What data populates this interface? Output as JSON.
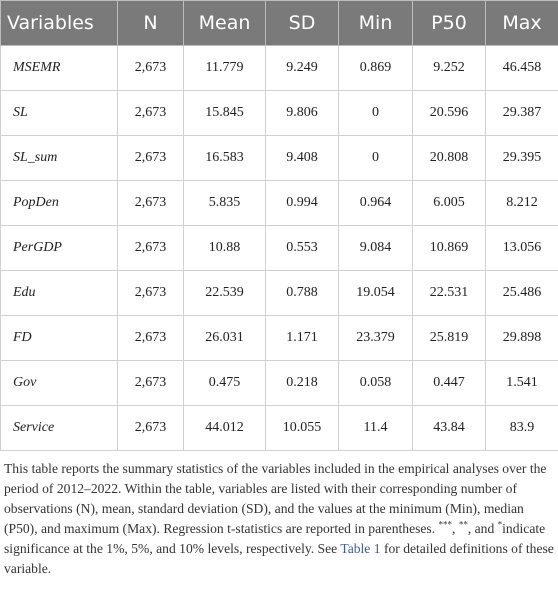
{
  "table": {
    "header": [
      "Variables",
      "N",
      "Mean",
      "SD",
      "Min",
      "P50",
      "Max"
    ],
    "rows": [
      [
        "MSEMR",
        "2,673",
        "11.779",
        "9.249",
        "0.869",
        "9.252",
        "46.458"
      ],
      [
        "SL",
        "2,673",
        "15.845",
        "9.806",
        "0",
        "20.596",
        "29.387"
      ],
      [
        "SL_sum",
        "2,673",
        "16.583",
        "9.408",
        "0",
        "20.808",
        "29.395"
      ],
      [
        "PopDen",
        "2,673",
        "5.835",
        "0.994",
        "0.964",
        "6.005",
        "8.212"
      ],
      [
        "PerGDP",
        "2,673",
        "10.88",
        "0.553",
        "9.084",
        "10.869",
        "13.056"
      ],
      [
        "Edu",
        "2,673",
        "22.539",
        "0.788",
        "19.054",
        "22.531",
        "25.486"
      ],
      [
        "FD",
        "2,673",
        "26.031",
        "1.171",
        "23.379",
        "25.819",
        "29.898"
      ],
      [
        "Gov",
        "2,673",
        "0.475",
        "0.218",
        "0.058",
        "0.447",
        "1.541"
      ],
      [
        "Service",
        "2,673",
        "44.012",
        "10.055",
        "11.4",
        "43.84",
        "83.9"
      ]
    ]
  },
  "note": {
    "parts": [
      "This table reports the summary statistics of the variables included in the empirical analyses over the period of 2012–2022. Within the table, variables are listed with their corresponding number of observations (N), mean, standard deviation (SD), and the values at the minimum (Min), median (P50), and maximum (Max). Regression t-statistics are reported in parentheses. ",
      "***",
      ", ",
      "**",
      ", and ",
      "*",
      "indicate significance at the 1%, 5%, and 10% levels, respectively. See ",
      "Table 1",
      " for detailed definitions of these variable."
    ]
  }
}
